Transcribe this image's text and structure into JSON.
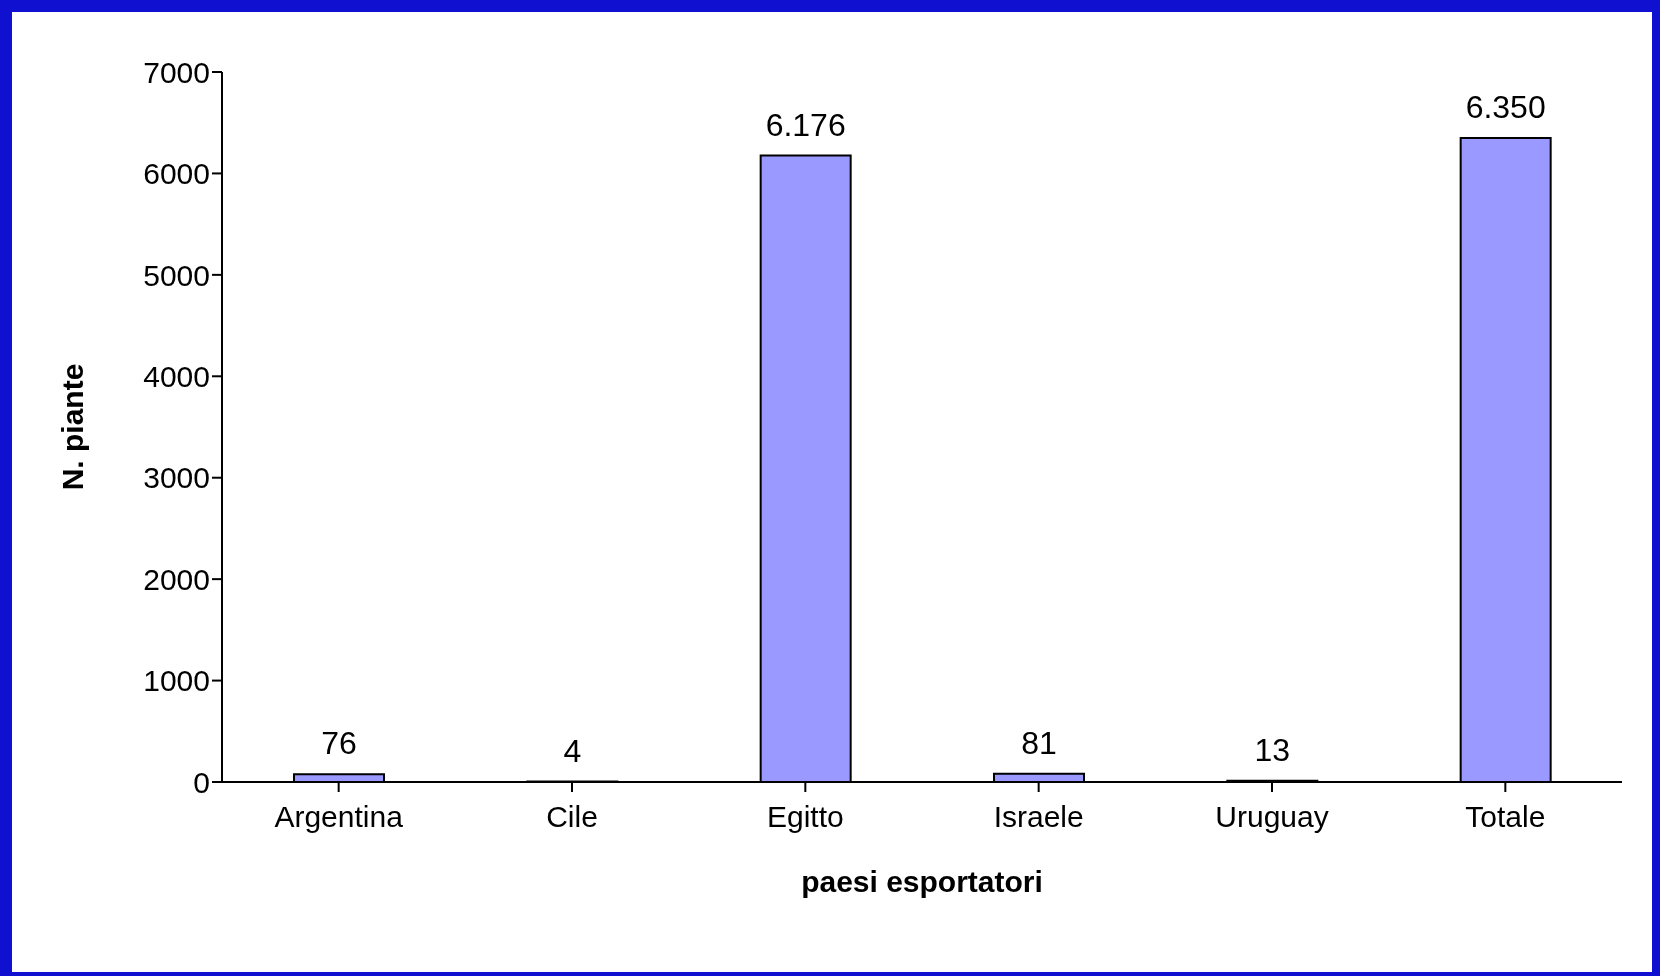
{
  "chart_data": {
    "type": "bar",
    "xlabel": "paesi esportatori",
    "ylabel": "N. piante",
    "categories": [
      "Argentina",
      "Cile",
      "Egitto",
      "Israele",
      "Uruguay",
      "Totale"
    ],
    "values": [
      76,
      4,
      6176,
      81,
      13,
      6350
    ],
    "value_labels": [
      "76",
      "4",
      "6.176",
      "81",
      "13",
      "6.350"
    ],
    "color": "#9999ff",
    "ylim": [
      0,
      7000
    ],
    "yticks": [
      0,
      1000,
      2000,
      3000,
      4000,
      5000,
      6000,
      7000
    ],
    "grid": false,
    "legend": false
  }
}
